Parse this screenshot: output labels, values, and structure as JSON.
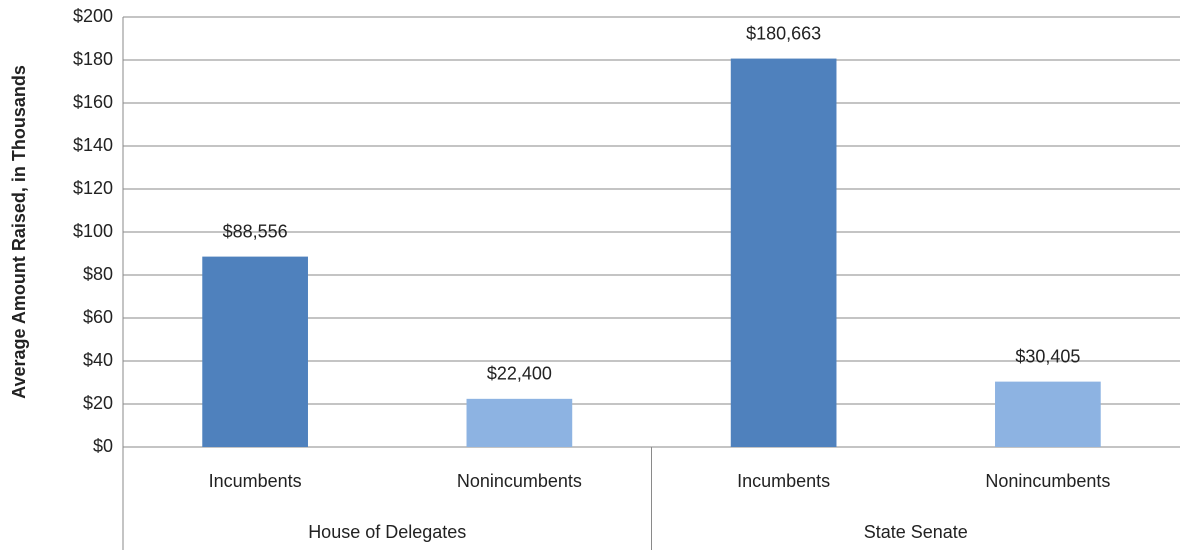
{
  "chart_data": {
    "type": "bar",
    "y_label": "Average Amount Raised, in Thousands",
    "groups": [
      {
        "name": "House of Delegates",
        "categories": [
          "Incumbents",
          "Nonincumbents"
        ],
        "values": [
          88.556,
          22.4
        ],
        "value_labels": [
          "$88,556",
          "$22,400"
        ],
        "colors": [
          "#4f81bd",
          "#8db3e2"
        ]
      },
      {
        "name": "State Senate",
        "categories": [
          "Incumbents",
          "Nonincumbents"
        ],
        "values": [
          180.663,
          30.405
        ],
        "value_labels": [
          "$180,663",
          "$30,405"
        ],
        "colors": [
          "#4f81bd",
          "#8db3e2"
        ]
      }
    ],
    "ylim": [
      0,
      200
    ],
    "yticks": [
      {
        "value": 0,
        "label": "$0"
      },
      {
        "value": 20,
        "label": "$20"
      },
      {
        "value": 40,
        "label": "$40"
      },
      {
        "value": 60,
        "label": "$60"
      },
      {
        "value": 80,
        "label": "$80"
      },
      {
        "value": 100,
        "label": "$100"
      },
      {
        "value": 120,
        "label": "$120"
      },
      {
        "value": 140,
        "label": "$140"
      },
      {
        "value": 160,
        "label": "$160"
      },
      {
        "value": 180,
        "label": "$180"
      },
      {
        "value": 200,
        "label": "$200"
      }
    ],
    "grid": true
  }
}
